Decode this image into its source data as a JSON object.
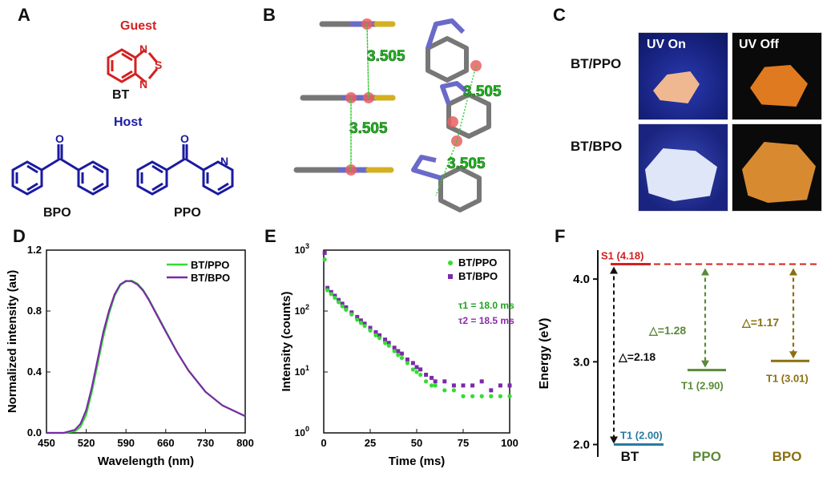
{
  "panels": {
    "A": {
      "label": "A",
      "guest_label": "Guest",
      "guest_name": "BT",
      "host_label": "Host",
      "host1": "BPO",
      "host2": "PPO",
      "atom_N": "N",
      "atom_S": "S",
      "atom_O": "O"
    },
    "B": {
      "label": "B",
      "distances": [
        "3.505",
        "3.505",
        "3.505",
        "3.505"
      ]
    },
    "C": {
      "label": "C",
      "uv_on": "UV On",
      "uv_off": "UV Off",
      "row1": "BT/PPO",
      "row2": "BT/BPO"
    },
    "D": {
      "label": "D"
    },
    "E": {
      "label": "E",
      "tau1": "τ1 = 18.0 ms",
      "tau2": "τ2 = 18.5 ms"
    },
    "F": {
      "label": "F"
    }
  },
  "colors": {
    "guest": "#d42020",
    "host": "#1a1aa0",
    "green": "#33dd33",
    "purple": "#7a2aa8",
    "tau1": "#22a022",
    "tau2": "#8a2aa8",
    "s1": "#d42020",
    "t1_bt": "#2a7aa0",
    "ppo": "#5a8a3a",
    "bpo": "#8a7010"
  },
  "chart_data": [
    {
      "type": "line",
      "title": "",
      "xlabel": "Wavelength (nm)",
      "ylabel": "Normalized intensity (au)",
      "xlim": [
        450,
        800
      ],
      "ylim": [
        0,
        1.2
      ],
      "xticks": [
        "450",
        "520",
        "590",
        "660",
        "730",
        "800"
      ],
      "yticks": [
        "0.0",
        "0.4",
        "0.8",
        "1.2"
      ],
      "legend": "top-right",
      "x": [
        450,
        480,
        500,
        510,
        520,
        530,
        540,
        550,
        560,
        570,
        580,
        590,
        600,
        610,
        620,
        630,
        640,
        660,
        680,
        700,
        730,
        760,
        800
      ],
      "series": [
        {
          "name": "BT/PPO",
          "values": [
            0.0,
            0.0,
            0.01,
            0.04,
            0.12,
            0.27,
            0.45,
            0.63,
            0.78,
            0.9,
            0.97,
            0.995,
            1.0,
            0.98,
            0.94,
            0.88,
            0.81,
            0.67,
            0.53,
            0.41,
            0.27,
            0.18,
            0.11
          ]
        },
        {
          "name": "BT/BPO",
          "values": [
            0.0,
            0.0,
            0.02,
            0.06,
            0.15,
            0.3,
            0.48,
            0.66,
            0.8,
            0.91,
            0.975,
            0.998,
            0.995,
            0.975,
            0.935,
            0.875,
            0.805,
            0.665,
            0.53,
            0.41,
            0.27,
            0.18,
            0.11
          ]
        }
      ]
    },
    {
      "type": "scatter",
      "title": "",
      "xlabel": "Time (ms)",
      "ylabel": "Intensity (counts)",
      "xlim": [
        0,
        100
      ],
      "ylim": [
        1,
        1000
      ],
      "yscale": "log",
      "xticks": [
        "0",
        "25",
        "50",
        "75",
        "100"
      ],
      "yticks": [
        "10^0",
        "10^1",
        "10^2",
        "10^3"
      ],
      "legend": "top-right",
      "series": [
        {
          "name": "BT/PPO",
          "tau_ms": 18.0,
          "x": [
            0.5,
            2,
            4,
            6,
            8,
            10,
            12,
            15,
            18,
            20,
            22,
            25,
            28,
            30,
            33,
            35,
            38,
            40,
            42,
            45,
            48,
            50,
            52,
            55,
            58,
            60,
            65,
            70,
            75,
            80,
            85,
            90,
            95,
            100
          ],
          "values": [
            700,
            220,
            190,
            165,
            140,
            120,
            105,
            88,
            72,
            64,
            57,
            48,
            40,
            36,
            30,
            27,
            22,
            19,
            17,
            14,
            11,
            10,
            9,
            7,
            6,
            6,
            5,
            5,
            4,
            4,
            4,
            4,
            4,
            4
          ]
        },
        {
          "name": "BT/BPO",
          "tau_ms": 18.5,
          "x": [
            0.5,
            2,
            4,
            6,
            8,
            10,
            12,
            15,
            18,
            20,
            22,
            25,
            28,
            30,
            33,
            35,
            38,
            40,
            42,
            45,
            48,
            50,
            52,
            55,
            58,
            60,
            65,
            70,
            75,
            80,
            85,
            90,
            95,
            100
          ],
          "values": [
            900,
            240,
            205,
            178,
            152,
            132,
            115,
            95,
            80,
            70,
            62,
            53,
            45,
            40,
            34,
            30,
            25,
            22,
            20,
            16,
            14,
            12,
            11,
            9,
            8,
            7,
            7,
            6,
            6,
            6,
            7,
            5,
            6,
            6
          ]
        }
      ]
    },
    {
      "type": "bar",
      "title": "",
      "xlabel": "",
      "ylabel": "Energy (eV)",
      "ylim": [
        1.85,
        4.35
      ],
      "yticks": [
        "2.0",
        "3.0",
        "4.0"
      ],
      "categories": [
        "BT",
        "PPO",
        "BPO"
      ],
      "levels": [
        {
          "label": "S1 (4.18)",
          "value": 4.18
        },
        {
          "label": "T1 (2.00)",
          "value": 2.0
        },
        {
          "label": "T1 (2.90)",
          "value": 2.9
        },
        {
          "label": "T1 (3.01)",
          "value": 3.01
        }
      ],
      "gaps": [
        {
          "label": "△=2.18",
          "value": 2.18
        },
        {
          "label": "△=1.28",
          "value": 1.28
        },
        {
          "label": "△=1.17",
          "value": 1.17
        }
      ]
    }
  ]
}
